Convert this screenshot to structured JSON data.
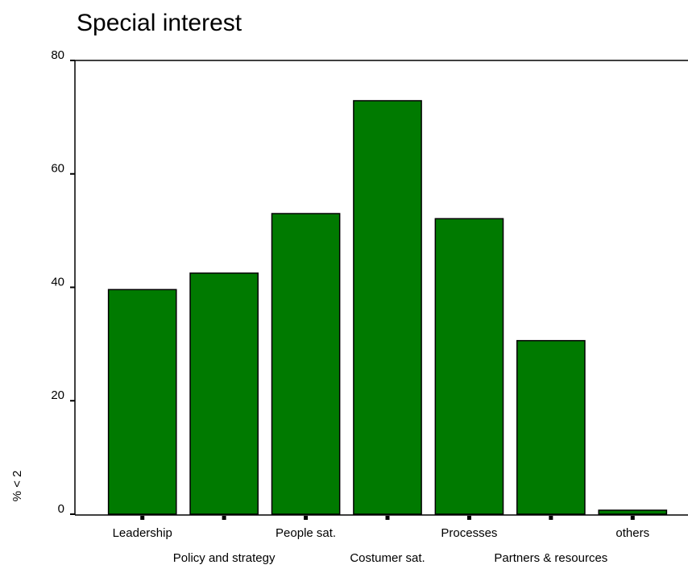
{
  "chart_data": {
    "type": "bar",
    "title": "Special interest",
    "y_label": "% < 2",
    "categories": [
      "Leadership",
      "Policy and strategy",
      "People sat.",
      "Costumer sat.",
      "Processes",
      "Partners & resources",
      "others"
    ],
    "values": [
      39.6,
      42.5,
      53.0,
      72.9,
      52.1,
      30.6,
      0.7
    ],
    "color": "#007a00",
    "ylim": [
      0,
      80
    ],
    "yticks": [
      0,
      20,
      40,
      60,
      80
    ],
    "grid": false
  }
}
